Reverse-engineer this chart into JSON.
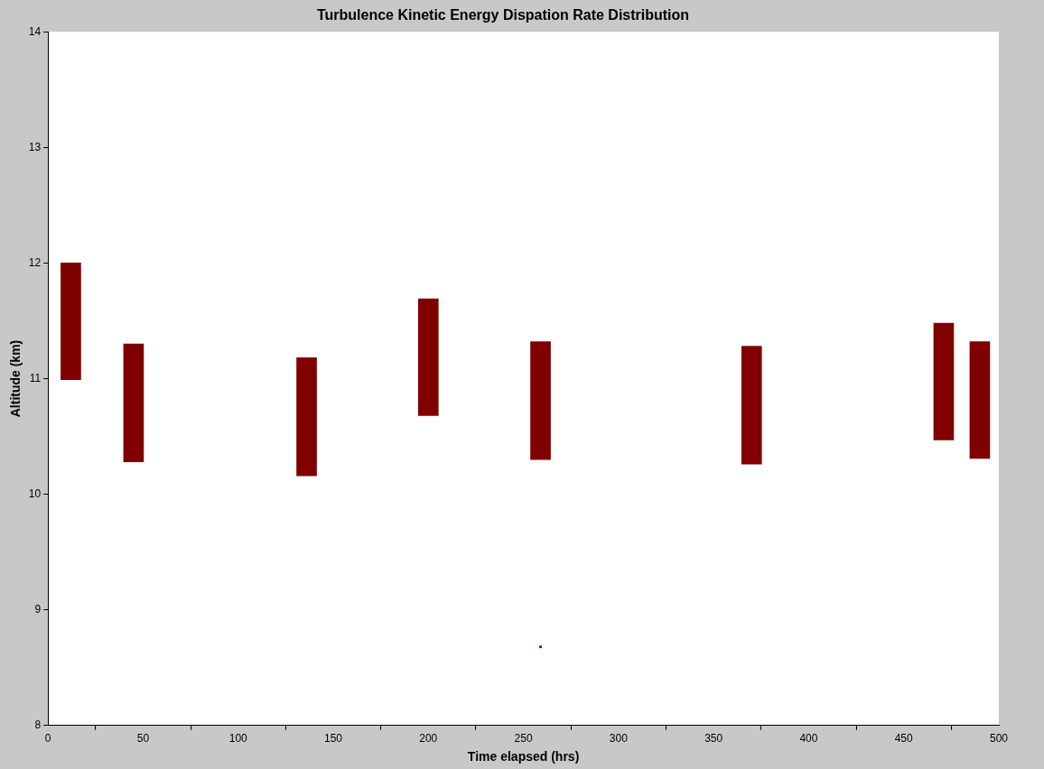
{
  "chart_data": {
    "type": "bar",
    "title": "Turbulence Kinetic Energy Dispation Rate Distribution",
    "xlabel": "Time elapsed (hrs)",
    "ylabel": "Altitude (km)",
    "series": [
      {
        "color": "#800000",
        "x": [
          12,
          45,
          136,
          200,
          259,
          370,
          471,
          490
        ],
        "base": [
          10.99,
          10.28,
          10.16,
          10.68,
          10.3,
          10.26,
          10.47,
          10.31
        ],
        "values": [
          1.01,
          1.02,
          1.02,
          1.01,
          1.02,
          1.02,
          1.01,
          1.01
        ]
      },
      {
        "type": "scatter",
        "color": "#800000",
        "marker": "square",
        "x": [
          259
        ],
        "values": [
          8.68
        ]
      }
    ],
    "xlim": [
      0,
      500
    ],
    "xticks": [
      0,
      50,
      100,
      150,
      200,
      250,
      300,
      350,
      400,
      450,
      500
    ],
    "ylim": [
      8,
      14
    ],
    "yticks": [
      8,
      9,
      10,
      11,
      12,
      13,
      14
    ],
    "grid": false,
    "legend": false
  }
}
